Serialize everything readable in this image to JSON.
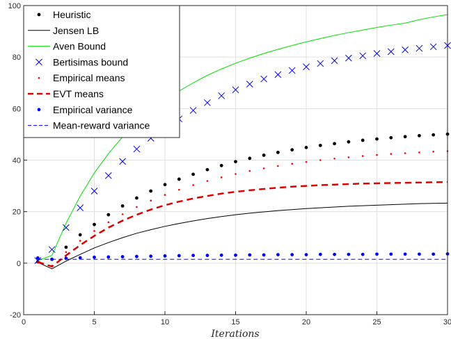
{
  "chart_data": {
    "type": "line",
    "title": "",
    "xlabel": "Iterations",
    "ylabel": "",
    "xlim": [
      0,
      30
    ],
    "ylim": [
      -20,
      100
    ],
    "xticks": [
      0,
      5,
      10,
      15,
      20,
      25,
      30
    ],
    "yticks": [
      -20,
      0,
      20,
      40,
      60,
      80,
      100
    ],
    "grid": true,
    "legend_position": "top-left",
    "series": [
      {
        "name": "Heuristic",
        "style": "dot",
        "color": "#000000",
        "x": [
          1,
          2,
          3,
          4,
          5,
          6,
          7,
          8,
          9,
          10,
          11,
          12,
          13,
          14,
          15,
          16,
          17,
          18,
          19,
          20,
          21,
          22,
          23,
          24,
          25,
          26,
          27,
          28,
          29,
          30
        ],
        "values": [
          0.5,
          1.5,
          6.2,
          11.0,
          15.0,
          18.8,
          22.2,
          25.3,
          28.0,
          30.5,
          32.6,
          34.5,
          36.3,
          37.9,
          39.4,
          40.7,
          41.9,
          43.0,
          44.0,
          44.9,
          45.7,
          46.4,
          47.1,
          47.7,
          48.2,
          48.7,
          49.1,
          49.5,
          49.8,
          50.1
        ]
      },
      {
        "name": "Jensen LB",
        "style": "solid",
        "color": "#000000",
        "x": [
          1,
          2,
          3,
          4,
          5,
          6,
          7,
          8,
          9,
          10,
          11,
          12,
          13,
          14,
          15,
          16,
          17,
          18,
          19,
          20,
          21,
          22,
          23,
          24,
          25,
          26,
          27,
          28,
          29,
          30
        ],
        "values": [
          0.3,
          -2.2,
          0.8,
          3.4,
          5.9,
          8.0,
          9.9,
          11.6,
          13.0,
          14.3,
          15.4,
          16.4,
          17.3,
          18.1,
          18.8,
          19.4,
          19.9,
          20.4,
          20.8,
          21.2,
          21.5,
          21.8,
          22.1,
          22.3,
          22.5,
          22.7,
          22.9,
          23.1,
          23.2,
          23.3
        ]
      },
      {
        "name": "Aven Bound",
        "style": "solid",
        "color": "#00e000",
        "x": [
          1,
          2,
          3,
          4,
          5,
          6,
          7,
          8,
          9,
          10,
          11,
          12,
          13,
          14,
          15,
          16,
          17,
          18,
          19,
          20,
          21,
          22,
          23,
          24,
          25,
          26,
          27,
          28,
          29,
          30
        ],
        "values": [
          1.0,
          3.0,
          15.5,
          26.0,
          35.0,
          42.5,
          49.0,
          54.5,
          59.2,
          63.2,
          66.8,
          70.0,
          72.9,
          75.4,
          77.6,
          79.6,
          81.4,
          83.0,
          84.5,
          85.9,
          87.2,
          88.4,
          89.5,
          90.5,
          91.5,
          92.4,
          93.2,
          94.5,
          95.6,
          96.5
        ]
      },
      {
        "name": "Bertisimas bound",
        "style": "cross",
        "color": "#0000ff",
        "x": [
          1,
          2,
          3,
          4,
          5,
          6,
          7,
          8,
          9,
          10,
          11,
          12,
          13,
          14,
          15,
          16,
          17,
          18,
          19,
          20,
          21,
          22,
          23,
          24,
          25,
          26,
          27,
          28,
          29,
          30
        ],
        "values": [
          1.0,
          5.3,
          13.8,
          21.5,
          28.0,
          34.0,
          39.5,
          44.3,
          48.5,
          52.5,
          56.0,
          59.3,
          62.3,
          65.0,
          67.3,
          69.5,
          71.5,
          73.2,
          74.8,
          76.2,
          77.5,
          78.6,
          79.6,
          80.5,
          81.4,
          82.1,
          82.8,
          83.4,
          84.0,
          84.5
        ]
      },
      {
        "name": "Empirical means",
        "style": "smalldot",
        "color": "#ff0000",
        "x": [
          1,
          2,
          3,
          4,
          5,
          6,
          7,
          8,
          9,
          10,
          11,
          12,
          13,
          14,
          15,
          16,
          17,
          18,
          19,
          20,
          21,
          22,
          23,
          24,
          25,
          26,
          27,
          28,
          29,
          30
        ],
        "values": [
          0.3,
          -1.0,
          4.3,
          8.7,
          12.5,
          15.9,
          19.0,
          21.8,
          24.3,
          26.5,
          28.5,
          30.3,
          31.9,
          33.3,
          34.6,
          35.8,
          36.8,
          37.7,
          38.6,
          39.3,
          40.0,
          40.6,
          41.1,
          41.6,
          42.0,
          42.4,
          42.7,
          43.0,
          43.3,
          43.5
        ]
      },
      {
        "name": "EVT means",
        "style": "dashed",
        "color": "#e00000",
        "x": [
          1,
          2,
          3,
          4,
          5,
          6,
          7,
          8,
          9,
          10,
          11,
          12,
          13,
          14,
          15,
          16,
          17,
          18,
          19,
          20,
          21,
          22,
          23,
          24,
          25,
          26,
          27,
          28,
          29,
          30
        ],
        "values": [
          0.5,
          -1.3,
          3.0,
          7.0,
          10.6,
          13.8,
          16.5,
          18.8,
          20.8,
          22.5,
          23.9,
          25.1,
          26.1,
          27.0,
          27.7,
          28.3,
          28.8,
          29.3,
          29.7,
          30.0,
          30.3,
          30.5,
          30.7,
          30.9,
          31.0,
          31.1,
          31.2,
          31.3,
          31.4,
          31.5
        ]
      },
      {
        "name": "Empirical variance",
        "style": "dot",
        "color": "#0000ff",
        "x": [
          1,
          2,
          3,
          4,
          5,
          6,
          7,
          8,
          9,
          10,
          11,
          12,
          13,
          14,
          15,
          16,
          17,
          18,
          19,
          20,
          21,
          22,
          23,
          24,
          25,
          26,
          27,
          28,
          29,
          30
        ],
        "values": [
          2.0,
          1.5,
          1.9,
          2.1,
          2.3,
          2.4,
          2.5,
          2.6,
          2.7,
          2.8,
          2.9,
          3.0,
          3.0,
          3.1,
          3.1,
          3.2,
          3.2,
          3.3,
          3.3,
          3.3,
          3.4,
          3.4,
          3.4,
          3.4,
          3.5,
          3.5,
          3.5,
          3.5,
          3.5,
          3.6
        ]
      },
      {
        "name": "Mean-reward variance",
        "style": "thindash",
        "color": "#0000ff",
        "x": [
          1,
          2,
          3,
          4,
          5,
          6,
          7,
          8,
          9,
          10,
          11,
          12,
          13,
          14,
          15,
          16,
          17,
          18,
          19,
          20,
          21,
          22,
          23,
          24,
          25,
          26,
          27,
          28,
          29,
          30
        ],
        "values": [
          1.5,
          1.5,
          1.5,
          1.5,
          1.5,
          1.5,
          1.5,
          1.5,
          1.5,
          1.5,
          1.5,
          1.5,
          1.5,
          1.5,
          1.5,
          1.5,
          1.5,
          1.5,
          1.5,
          1.5,
          1.5,
          1.5,
          1.5,
          1.5,
          1.5,
          1.5,
          1.5,
          1.5,
          1.5,
          1.5
        ]
      }
    ]
  }
}
